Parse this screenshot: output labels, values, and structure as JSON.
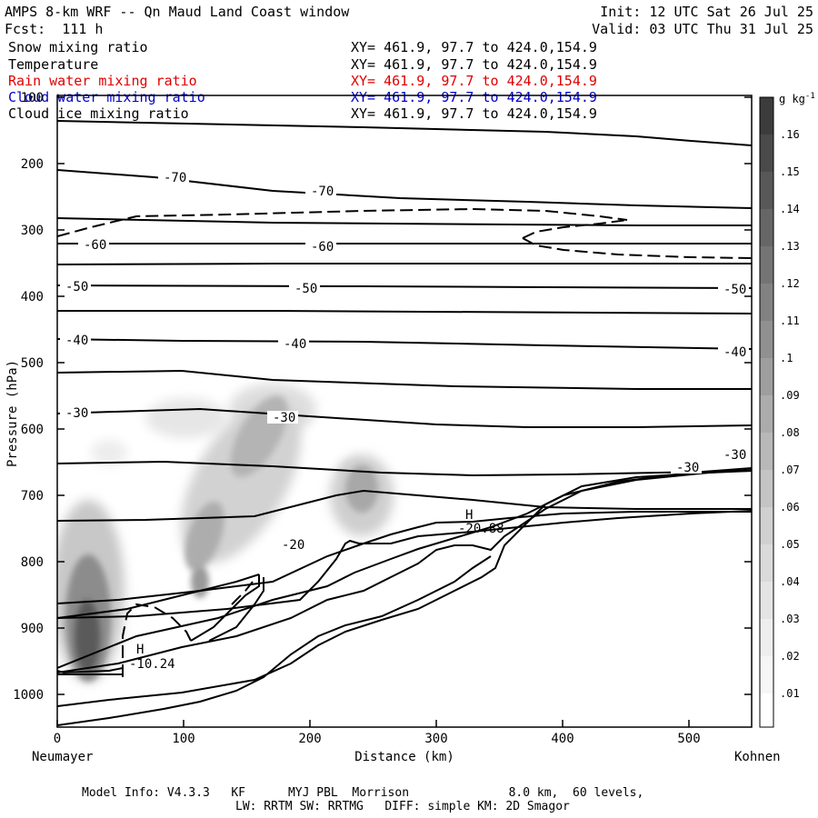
{
  "header": {
    "title": "AMPS 8-km WRF -- Qn Maud Land Coast window",
    "init": "Init: 12 UTC Sat 26 Jul 25",
    "fcst": "Fcst:  111 h",
    "valid": "Valid: 03 UTC Thu 31 Jul 25"
  },
  "fields": [
    {
      "label": "Snow mixing ratio",
      "xy": "XY= 461.9, 97.7 to 424.0,154.9",
      "color": "#000000"
    },
    {
      "label": "Temperature",
      "xy": "XY= 461.9, 97.7 to 424.0,154.9",
      "color": "#000000"
    },
    {
      "label": "Rain water mixing ratio",
      "xy": "XY= 461.9, 97.7 to 424.0,154.9",
      "color": "#e00000"
    },
    {
      "label": "Cloud water mixing ratio",
      "xy": "XY= 461.9, 97.7 to 424.0,154.9",
      "color": "#0000cc"
    },
    {
      "label": "Cloud ice mixing ratio",
      "xy": "XY= 461.9, 97.7 to 424.0,154.9",
      "color": "#000000"
    }
  ],
  "footer": {
    "line1": "Model Info: V4.3.3   KF      MYJ PBL  Morrison              8.0 km,  60 levels,",
    "line2": "LW: RRTM SW: RRTMG   DIFF: simple KM: 2D Smagor"
  },
  "chart_data": {
    "type": "contour",
    "xlabel": "Distance (km)",
    "ylabel": "Pressure (hPa)",
    "xlim": [
      0,
      550
    ],
    "ylim": [
      1050,
      100
    ],
    "x_ticks": [
      "0",
      "100",
      "200",
      "300",
      "400",
      "500"
    ],
    "y_ticks": [
      "100",
      "200",
      "300",
      "400",
      "500",
      "600",
      "700",
      "800",
      "900",
      "1000"
    ],
    "left_endpoint": "Neumayer",
    "right_endpoint": "Kohnen",
    "colorbar": {
      "unit": "g kg",
      "unit_exp": "-1",
      "ticks": [
        ".01",
        ".02",
        ".03",
        ".04",
        ".05",
        ".06",
        ".07",
        ".08",
        ".09",
        ".1",
        ".11",
        ".12",
        ".13",
        ".14",
        ".15",
        ".16"
      ]
    },
    "temperature_contour_labels": [
      "-70",
      "-70",
      "-60",
      "-60",
      "-50",
      "-50",
      "-50",
      "-40",
      "-40",
      "-40",
      "-30",
      "-30",
      "-30",
      "-30",
      "-20"
    ],
    "highs": [
      {
        "symbol": "H",
        "value": "-10.24",
        "x_km": 65,
        "p_hpa": 940
      },
      {
        "symbol": "H",
        "value": "-20.88",
        "x_km": 325,
        "p_hpa": 752
      }
    ]
  }
}
